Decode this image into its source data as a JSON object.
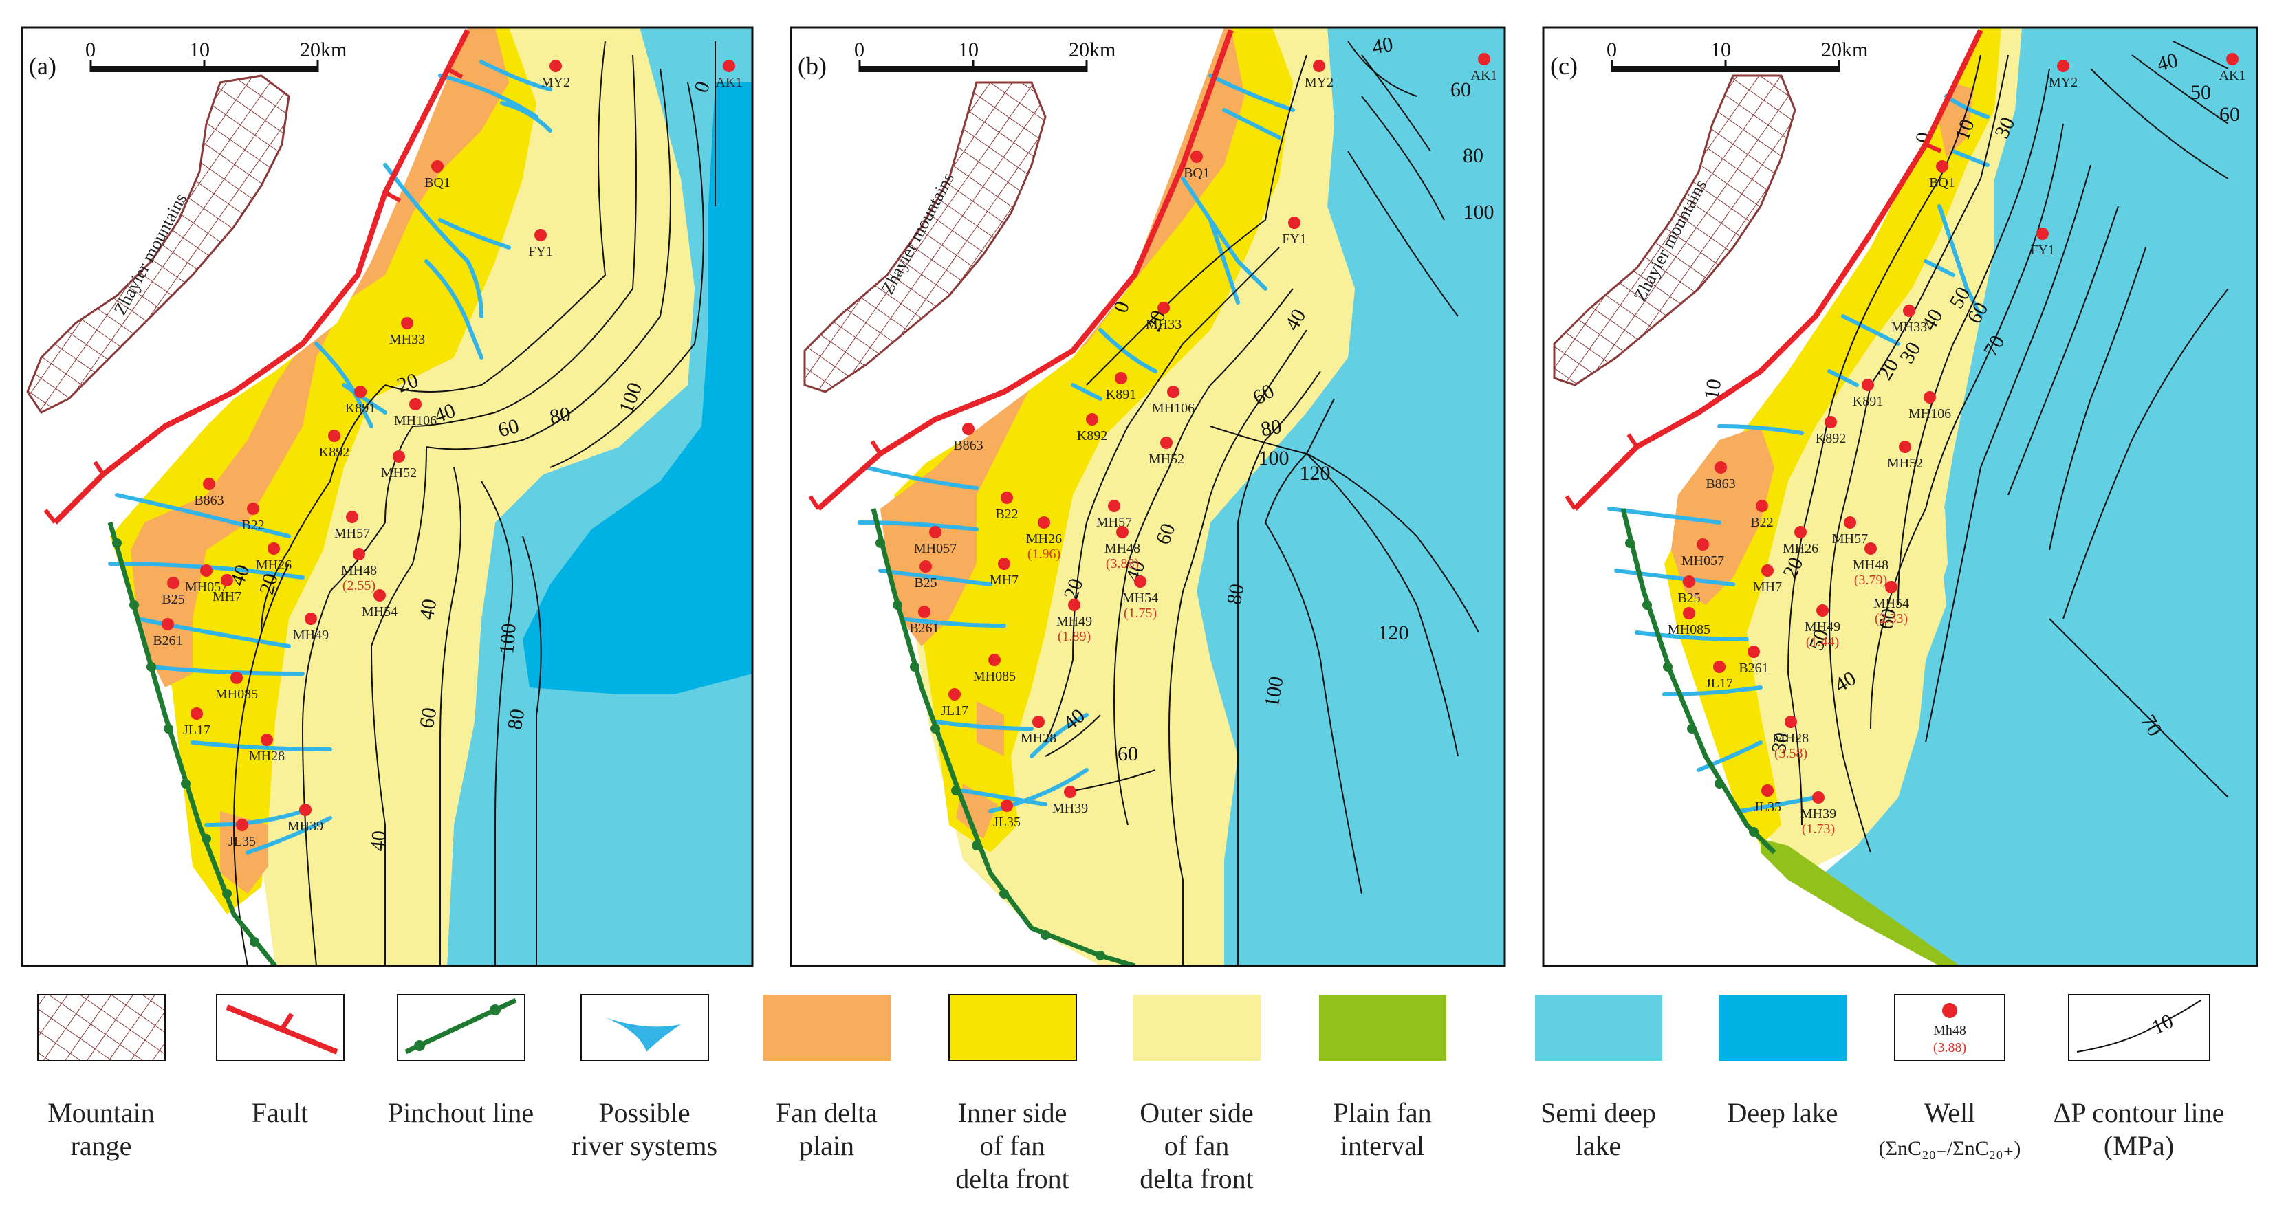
{
  "scale_bar": {
    "labels": [
      "0",
      "10",
      "20km"
    ]
  },
  "mountain_label": "Zhayier mountains",
  "colors": {
    "fan_delta_plain": "#f8ad5d",
    "inner_front": "#f7e400",
    "outer_front": "#f8f19a",
    "plain_fan_interval": "#93c11c",
    "semi_deep_lake": "#63cfe2",
    "deep_lake": "#00b1e3",
    "fault": "#e8232a",
    "pinchout": "#1e7a31",
    "river": "#33b4e6",
    "mountain": "#8b3a3a",
    "well": "#e8232a"
  },
  "panels": [
    {
      "label": "(a)",
      "wells": [
        {
          "name": "AK1"
        },
        {
          "name": "MY2"
        },
        {
          "name": "BQ1"
        },
        {
          "name": "FY1"
        },
        {
          "name": "MH33"
        },
        {
          "name": "K891"
        },
        {
          "name": "MH106"
        },
        {
          "name": "K892"
        },
        {
          "name": "MH52"
        },
        {
          "name": "B863"
        },
        {
          "name": "B22"
        },
        {
          "name": "MH57"
        },
        {
          "name": "MH057"
        },
        {
          "name": "MH26"
        },
        {
          "name": "MH48",
          "ratio": "(2.55)"
        },
        {
          "name": "B25"
        },
        {
          "name": "MH7"
        },
        {
          "name": "MH49"
        },
        {
          "name": "MH54"
        },
        {
          "name": "B261"
        },
        {
          "name": "MH085"
        },
        {
          "name": "JL17"
        },
        {
          "name": "MH28"
        },
        {
          "name": "JL35"
        },
        {
          "name": "MH39"
        }
      ],
      "contours": [
        "0",
        "20",
        "40",
        "60",
        "80",
        "100",
        "20",
        "40",
        "60",
        "80",
        "100",
        "40",
        "40"
      ]
    },
    {
      "label": "(b)",
      "wells": [
        {
          "name": "AK1"
        },
        {
          "name": "MY2"
        },
        {
          "name": "BQ1"
        },
        {
          "name": "FY1"
        },
        {
          "name": "MH33"
        },
        {
          "name": "K891"
        },
        {
          "name": "MH106"
        },
        {
          "name": "K892"
        },
        {
          "name": "MH52"
        },
        {
          "name": "B863"
        },
        {
          "name": "B22"
        },
        {
          "name": "MH57"
        },
        {
          "name": "MH057"
        },
        {
          "name": "MH26",
          "ratio": "(1.96)"
        },
        {
          "name": "MH48",
          "ratio": "(3.88)"
        },
        {
          "name": "B25"
        },
        {
          "name": "MH7"
        },
        {
          "name": "MH49",
          "ratio": "(1.89)"
        },
        {
          "name": "MH54",
          "ratio": "(1.75)"
        },
        {
          "name": "B261"
        },
        {
          "name": "MH085"
        },
        {
          "name": "JL17"
        },
        {
          "name": "MH28"
        },
        {
          "name": "JL35"
        },
        {
          "name": "MH39"
        }
      ],
      "contours": [
        "40",
        "60",
        "80",
        "100",
        "0",
        "20",
        "40",
        "60",
        "80",
        "100",
        "120",
        "20",
        "40",
        "60",
        "80",
        "100",
        "120",
        "40",
        "60"
      ]
    },
    {
      "label": "(c)",
      "wells": [
        {
          "name": "AK1"
        },
        {
          "name": "MY2"
        },
        {
          "name": "BQ1"
        },
        {
          "name": "FY1"
        },
        {
          "name": "MH33"
        },
        {
          "name": "K891"
        },
        {
          "name": "MH106"
        },
        {
          "name": "K892"
        },
        {
          "name": "MH52"
        },
        {
          "name": "B863"
        },
        {
          "name": "B22"
        },
        {
          "name": "MH57"
        },
        {
          "name": "MH057"
        },
        {
          "name": "MH26"
        },
        {
          "name": "MH48",
          "ratio": "(3.79)"
        },
        {
          "name": "B25"
        },
        {
          "name": "MH7"
        },
        {
          "name": "MH49",
          "ratio": "(1.44)"
        },
        {
          "name": "MH54",
          "ratio": "(2.33)"
        },
        {
          "name": "MH085"
        },
        {
          "name": "B261"
        },
        {
          "name": "JL17"
        },
        {
          "name": "MH28",
          "ratio": "(3.58)"
        },
        {
          "name": "JL35"
        },
        {
          "name": "MH39",
          "ratio": "(1.73)"
        }
      ],
      "contours": [
        "40",
        "50",
        "60",
        "0",
        "10",
        "30",
        "20",
        "30",
        "40",
        "50",
        "60",
        "70",
        "10",
        "20",
        "50",
        "40",
        "60",
        "30",
        "70"
      ]
    }
  ],
  "legend": {
    "items": [
      {
        "key": "mountain",
        "label": [
          "Mountain",
          "range"
        ]
      },
      {
        "key": "fault",
        "label": [
          "Fault"
        ]
      },
      {
        "key": "pinchout",
        "label": [
          "Pinchout line"
        ]
      },
      {
        "key": "river",
        "label": [
          "Possible",
          "river systems"
        ]
      },
      {
        "key": "fan_delta_plain",
        "label": [
          "Fan delta",
          "plain"
        ]
      },
      {
        "key": "inner_front",
        "label": [
          "Inner side",
          "of fan",
          "delta front"
        ]
      },
      {
        "key": "outer_front",
        "label": [
          "Outer side",
          "of fan",
          "delta front"
        ]
      },
      {
        "key": "plain_fan_interval",
        "label": [
          "Plain fan",
          "interval"
        ]
      },
      {
        "key": "semi_deep_lake",
        "label": [
          "Semi deep",
          "lake"
        ]
      },
      {
        "key": "deep_lake",
        "label": [
          "Deep lake"
        ]
      },
      {
        "key": "well",
        "label": [
          "Well",
          "(ΣnC₂₀₋/ΣnC₂₀₊)"
        ],
        "sample_name": "Mh48",
        "sample_ratio": "(3.88)"
      },
      {
        "key": "contour",
        "label": [
          "ΔP contour line",
          "(MPa)"
        ],
        "sample_value": "10"
      }
    ]
  }
}
